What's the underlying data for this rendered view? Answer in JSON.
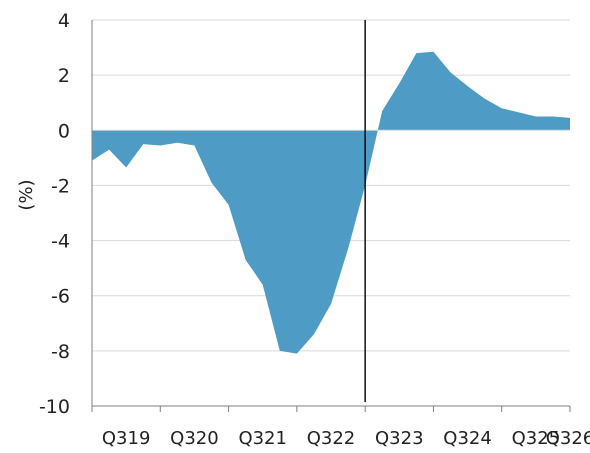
{
  "chart_data": {
    "type": "area",
    "title": "",
    "xlabel": "",
    "ylabel": "(%)",
    "ylim": [
      -10,
      4
    ],
    "yticks": [
      "4",
      "2",
      "0",
      "-2",
      "-4",
      "-6",
      "-8",
      "-10"
    ],
    "ytick_values": [
      4,
      2,
      0,
      -2,
      -4,
      -6,
      -8,
      -10
    ],
    "x_tick_labels": [
      "Q319",
      "Q320",
      "Q321",
      "Q322",
      "Q323",
      "Q324",
      "Q325",
      "Q326"
    ],
    "x_range": [
      "2019-Q3",
      "2026-Q3"
    ],
    "vertical_marker": {
      "x": "2023-Q3"
    },
    "grid": {
      "horizontal": true,
      "vertical": false
    },
    "legend": "none",
    "colors": {
      "area": "#4e9bc5",
      "grid": "#d9d9d9",
      "axis": "#7f7f7f",
      "marker": "#000000"
    },
    "series": [
      {
        "x": [
          "2019-07",
          "2019-10",
          "2020-01",
          "2020-04",
          "2020-07",
          "2020-10",
          "2021-01",
          "2021-04",
          "2021-07",
          "2021-10",
          "2022-01",
          "2022-04",
          "2022-07",
          "2022-10",
          "2023-01",
          "2023-04",
          "2023-07",
          "2023-10",
          "2024-01",
          "2024-04",
          "2024-07",
          "2024-10",
          "2025-01",
          "2025-04",
          "2025-07",
          "2025-10",
          "2026-01",
          "2026-04",
          "2026-07"
        ],
        "values": [
          -1.1,
          -0.7,
          -1.35,
          -0.5,
          -0.55,
          -0.45,
          -0.55,
          -1.9,
          -2.7,
          -4.7,
          -5.6,
          -8.0,
          -8.1,
          -7.4,
          -6.3,
          -4.3,
          -2.0,
          0.7,
          1.7,
          2.8,
          2.85,
          2.1,
          1.6,
          1.15,
          0.8,
          0.65,
          0.5,
          0.5,
          0.45
        ]
      }
    ]
  }
}
